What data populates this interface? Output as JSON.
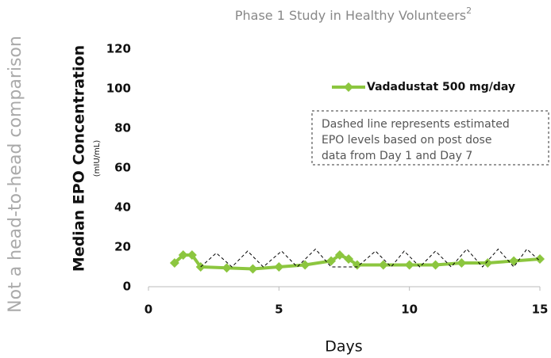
{
  "chart_data": {
    "type": "line",
    "title": "Phase 1 Study in Healthy Volunteers",
    "title_note": "2",
    "side_note": "Not a head-to-head comparison",
    "y_label": "Median EPO Concentration",
    "y_label_unit": "(mIU/mL)",
    "x_label": "Days",
    "annotation": [
      "Dashed line represents estimated",
      "EPO levels based on post dose",
      "data from Day 1 and Day 7"
    ],
    "xlim": [
      0,
      15
    ],
    "xticks": [
      0,
      5,
      10,
      15
    ],
    "ylim": [
      0,
      120
    ],
    "yticks": [
      0,
      20,
      40,
      60,
      80,
      100,
      120
    ],
    "legend": "top-right",
    "series": [
      {
        "name": "Vadadustat 500 mg/day",
        "color": "#8cc63f",
        "markers": true,
        "x": [
          1,
          1.33,
          1.67,
          2,
          3,
          4,
          5,
          6,
          7,
          7.33,
          7.67,
          8,
          9,
          10,
          11,
          12,
          13,
          14,
          15
        ],
        "values": [
          12,
          16,
          16,
          10,
          9.5,
          9,
          10,
          11,
          13,
          16,
          14,
          11,
          11,
          11,
          11,
          12,
          12,
          13,
          14
        ]
      },
      {
        "color": "#000000",
        "dashed": true,
        "x": [
          2,
          2.6,
          3.2,
          3.8,
          4.4,
          5.1,
          5.7,
          6.4,
          7,
          8,
          8.7,
          9.3,
          9.8,
          10.4,
          11,
          11.6,
          12.2,
          12.8,
          13.4,
          14,
          14.5,
          15
        ],
        "values": [
          10,
          17,
          10,
          18,
          10,
          18,
          10,
          19,
          10,
          10,
          18,
          10,
          18,
          10,
          18,
          10,
          19,
          10,
          19,
          10,
          19,
          13
        ]
      }
    ]
  }
}
